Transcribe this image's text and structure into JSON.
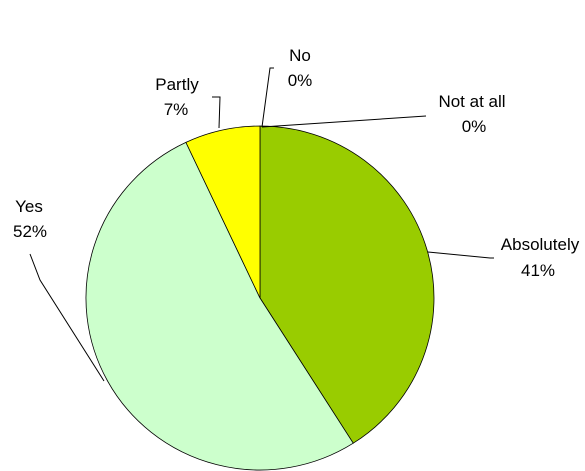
{
  "chart_data": {
    "type": "pie",
    "start_angle_deg": 0,
    "direction": "clockwise",
    "legend": "none",
    "slices": [
      {
        "label": "Absolutely",
        "value": 41,
        "value_label": "41%",
        "color": "#99cc00"
      },
      {
        "label": "Yes",
        "value": 52,
        "value_label": "52%",
        "color": "#ccffcc"
      },
      {
        "label": "Partly",
        "value": 7,
        "value_label": "7%",
        "color": "#ffff00"
      },
      {
        "label": "No",
        "value": 0,
        "value_label": "0%",
        "color": "#ffffff"
      },
      {
        "label": "Not at all",
        "value": 0,
        "value_label": "0%",
        "color": "#ffffff"
      }
    ]
  }
}
